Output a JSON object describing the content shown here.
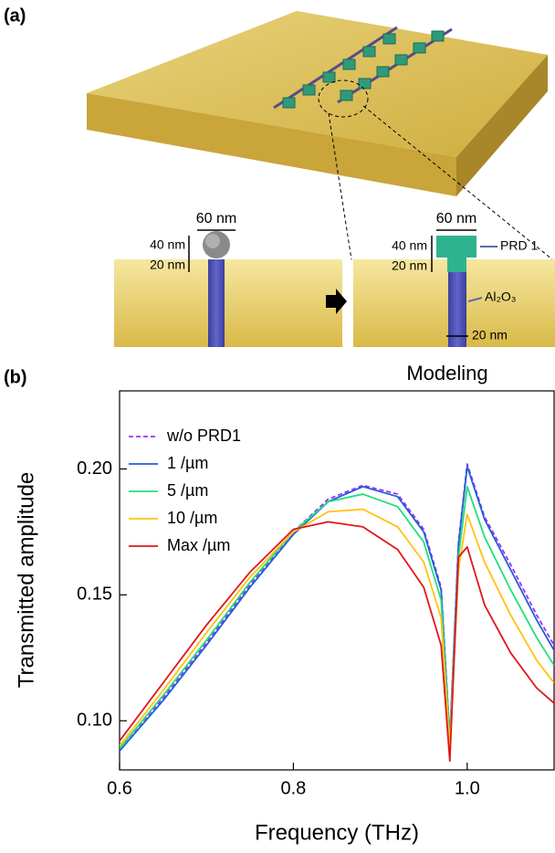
{
  "panel_a": {
    "label": "(a)",
    "left_width": "60 nm",
    "left_height_top": "40 nm",
    "left_height_bottom": "20 nm",
    "right_width": "60 nm",
    "right_height_top": "40 nm",
    "right_height_bottom": "20 nm",
    "prd_label": "PRD 1",
    "oxide_label": "Al₂O₃",
    "gap_label": "20 nm",
    "caption": "Modeling"
  },
  "chart_data": {
    "type": "line",
    "panel_label": "(b)",
    "x_label": "Frequency (THz)",
    "y_label": "Transmitted amplitude",
    "x": [
      0.6,
      0.65,
      0.7,
      0.75,
      0.8,
      0.84,
      0.88,
      0.92,
      0.95,
      0.97,
      0.98,
      0.99,
      1.0,
      1.02,
      1.05,
      1.08,
      1.1
    ],
    "series": [
      {
        "name": "w/o PRD1",
        "color": "#9b30ff",
        "style": "dashed",
        "values": [
          0.089,
          0.109,
          0.131,
          0.154,
          0.175,
          0.188,
          0.1935,
          0.19,
          0.176,
          0.153,
          0.093,
          0.171,
          0.202,
          0.181,
          0.162,
          0.142,
          0.13
        ]
      },
      {
        "name": "1 /µm",
        "color": "#1f5fd6",
        "style": "solid",
        "values": [
          0.088,
          0.108,
          0.13,
          0.153,
          0.174,
          0.187,
          0.193,
          0.189,
          0.175,
          0.152,
          0.092,
          0.17,
          0.201,
          0.18,
          0.16,
          0.14,
          0.128
        ]
      },
      {
        "name": "5 /µm",
        "color": "#22e07a",
        "style": "solid",
        "values": [
          0.089,
          0.11,
          0.132,
          0.155,
          0.175,
          0.187,
          0.19,
          0.185,
          0.171,
          0.148,
          0.091,
          0.165,
          0.193,
          0.173,
          0.152,
          0.133,
          0.122
        ]
      },
      {
        "name": "10 /µm",
        "color": "#ffc20e",
        "style": "solid",
        "values": [
          0.09,
          0.112,
          0.135,
          0.157,
          0.175,
          0.183,
          0.184,
          0.177,
          0.163,
          0.141,
          0.089,
          0.16,
          0.182,
          0.163,
          0.142,
          0.124,
          0.115
        ]
      },
      {
        "name": "Max /µm",
        "color": "#e0161b",
        "style": "solid",
        "values": [
          0.092,
          0.115,
          0.138,
          0.159,
          0.176,
          0.179,
          0.177,
          0.168,
          0.153,
          0.13,
          0.084,
          0.165,
          0.169,
          0.146,
          0.127,
          0.113,
          0.107
        ]
      }
    ],
    "xlim": [
      0.6,
      1.1
    ],
    "ylim": [
      0.0805,
      0.231
    ],
    "xticks": [
      0.6,
      0.8,
      {
        "value": 1,
        "label": "1.0"
      }
    ],
    "yticks": [
      {
        "value": 0.1,
        "label": "0.10"
      },
      0.15,
      {
        "value": 0.2,
        "label": "0.20"
      }
    ],
    "legend": "upper-left"
  }
}
